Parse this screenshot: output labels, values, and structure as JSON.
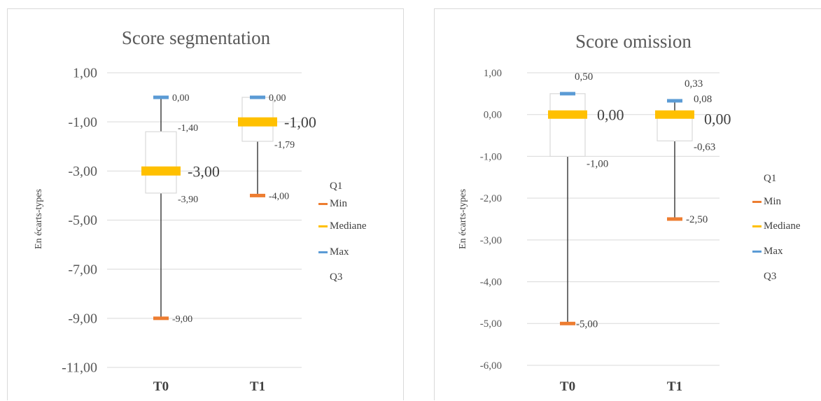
{
  "colors": {
    "min": "#ED7D31",
    "median": "#FFC000",
    "max": "#5B9BD5",
    "box": "#D9D9D9",
    "whisker": "#404040",
    "grid": "#D9D9D9"
  },
  "chart_data": [
    {
      "type": "box",
      "title": "Score segmentation",
      "ylabel": "En écarts-types",
      "ylim": [
        -11,
        1
      ],
      "yticks": [
        1,
        -1,
        -3,
        -5,
        -7,
        -9,
        -11
      ],
      "ytick_labels": [
        "1,00",
        "-1,00",
        "-3,00",
        "-5,00",
        "-7,00",
        "-9,00",
        "-11,00"
      ],
      "categories": [
        "T0",
        "T1"
      ],
      "legend": [
        "Q1",
        "Min",
        "Mediane",
        "Max",
        "Q3"
      ],
      "legend_position": "right",
      "series": [
        {
          "name": "Q1",
          "values": [
            -3.9,
            -1.79
          ]
        },
        {
          "name": "Min",
          "values": [
            -9.0,
            -4.0
          ]
        },
        {
          "name": "Mediane",
          "values": [
            -3.0,
            -1.0
          ]
        },
        {
          "name": "Max",
          "values": [
            0.0,
            0.0
          ]
        },
        {
          "name": "Q3",
          "values": [
            -1.4,
            0.0
          ]
        }
      ],
      "labels": {
        "min": [
          "-9,00",
          "-4,00"
        ],
        "median": [
          "-3,00",
          "-1,00"
        ],
        "max": [
          "0,00",
          "0,00"
        ],
        "q1": [
          "-3,90",
          "-1,79"
        ],
        "q3": [
          "-1,40",
          ""
        ]
      }
    },
    {
      "type": "box",
      "title": "Score omission",
      "ylabel": "En écarts-types",
      "ylim": [
        -6,
        1
      ],
      "yticks": [
        1,
        0,
        -1,
        -2,
        -3,
        -4,
        -5,
        -6
      ],
      "ytick_labels": [
        "1,00",
        "0,00",
        "-1,00",
        "-2,00",
        "-3,00",
        "-4,00",
        "-5,00",
        "-6,00"
      ],
      "categories": [
        "T0",
        "T1"
      ],
      "legend": [
        "Q1",
        "Min",
        "Mediane",
        "Max",
        "Q3"
      ],
      "legend_position": "right",
      "series": [
        {
          "name": "Q1",
          "values": [
            -1.0,
            -0.63
          ]
        },
        {
          "name": "Min",
          "values": [
            -5.0,
            -2.5
          ]
        },
        {
          "name": "Mediane",
          "values": [
            0.0,
            0.0
          ]
        },
        {
          "name": "Max",
          "values": [
            0.5,
            0.33
          ]
        },
        {
          "name": "Q3",
          "values": [
            0.5,
            0.08
          ]
        }
      ],
      "labels": {
        "min": [
          "-5,00",
          "-2,50"
        ],
        "median": [
          "0,00",
          "0,00"
        ],
        "max": [
          "0,50",
          "0,33"
        ],
        "q1": [
          "-1,00",
          "-0,63"
        ],
        "q3": [
          "",
          "0,08"
        ]
      }
    }
  ]
}
